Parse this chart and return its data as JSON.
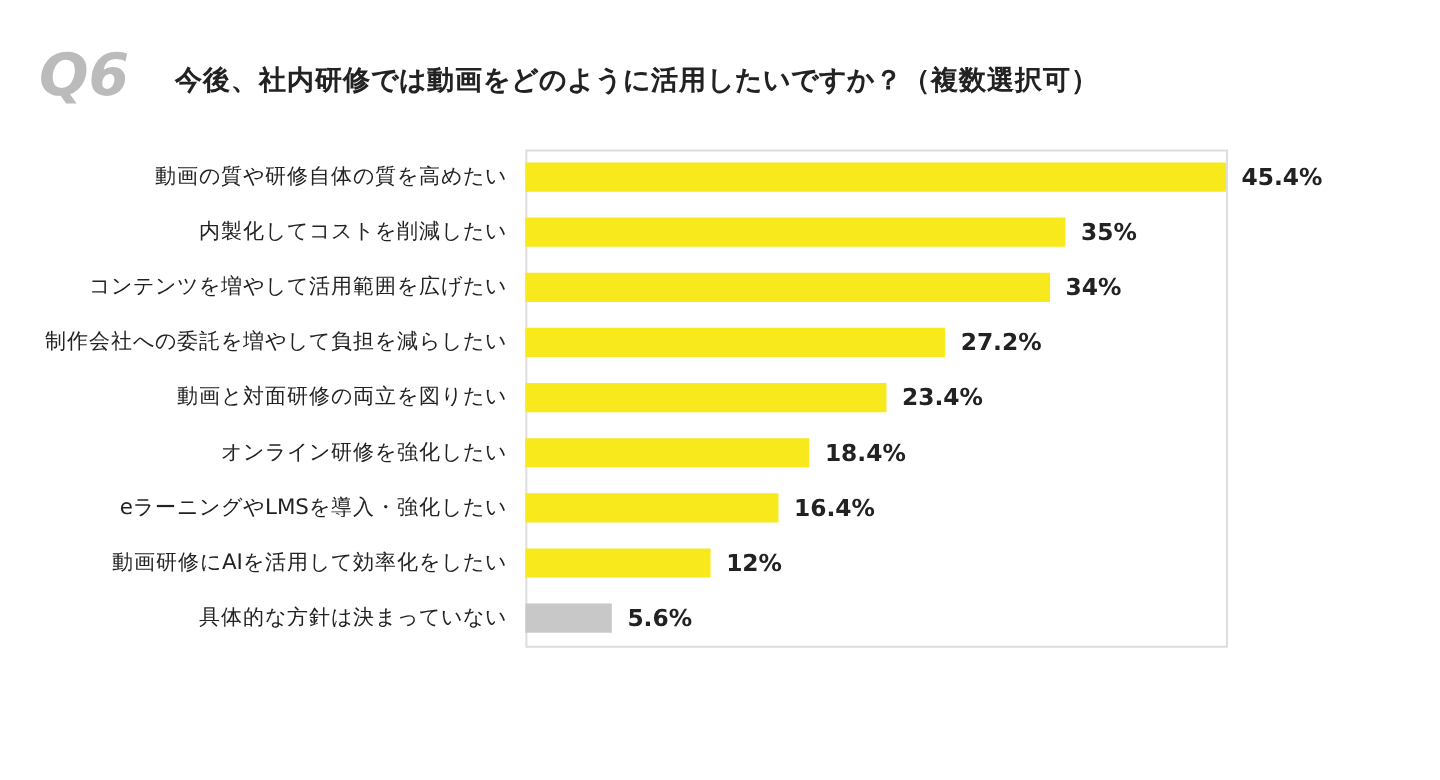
{
  "chart_data": {
    "type": "bar",
    "orientation": "horizontal",
    "title": "今後、社内研修では動画をどのように活用したいですか？（複数選択可）",
    "annotations": [
      "Q6"
    ],
    "categories": [
      "動画の質や研修自体の質を高めたい",
      "内製化してコストを削減したい",
      "コンテンツを増やして活用範囲を広げたい",
      "制作会社への委託を増やして負担を減らしたい",
      "動画と対面研修の両立を図りたい",
      "オンライン研修を強化したい",
      "eラーニングやLMSを導入・強化したい",
      "動画研修にAIを活用して効率化をしたい",
      "具体的な方針は決まっていない"
    ],
    "values": [
      45.4,
      35,
      34,
      27.2,
      23.4,
      18.4,
      16.4,
      12,
      5.6
    ],
    "value_labels": [
      "45.4%",
      "35%",
      "34%",
      "27.2%",
      "23.4%",
      "18.4%",
      "16.4%",
      "12%",
      "5.6%"
    ],
    "colors": [
      "#f7e91c",
      "#f7e91c",
      "#f7e91c",
      "#f7e91c",
      "#f7e91c",
      "#f7e91c",
      "#f7e91c",
      "#f7e91c",
      "#c8c8c8"
    ],
    "grid": false
  }
}
